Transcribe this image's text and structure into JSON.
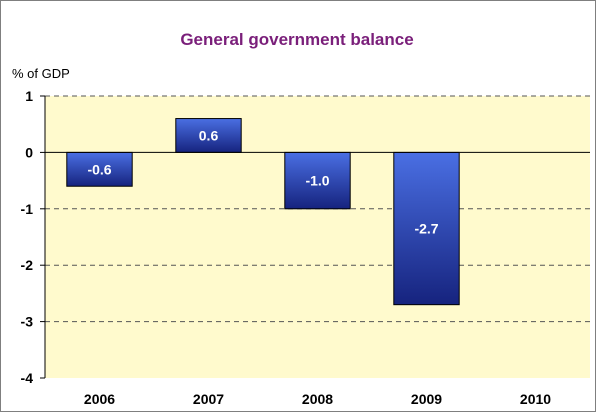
{
  "chart_data": {
    "type": "bar",
    "title": "General government balance",
    "ylabel": "% of GDP",
    "xlabel": "",
    "categories": [
      "2006",
      "2007",
      "2008",
      "2009",
      "2010"
    ],
    "values": [
      -0.6,
      0.6,
      -1.0,
      -2.7,
      null
    ],
    "data_labels": [
      "-0.6",
      "0.6",
      "-1.0",
      "-2.7",
      ""
    ],
    "yticks": [
      "1",
      "0",
      "-1",
      "-2",
      "-3",
      "-4"
    ],
    "ylim": [
      -4,
      1
    ],
    "grid": true,
    "legend": "none",
    "colors": {
      "plot_background": "#FFFACD",
      "bar_top": "#4a6fe3",
      "bar_bottom": "#16237e",
      "title": "#7a1f7a",
      "gridline": "#555555"
    }
  }
}
